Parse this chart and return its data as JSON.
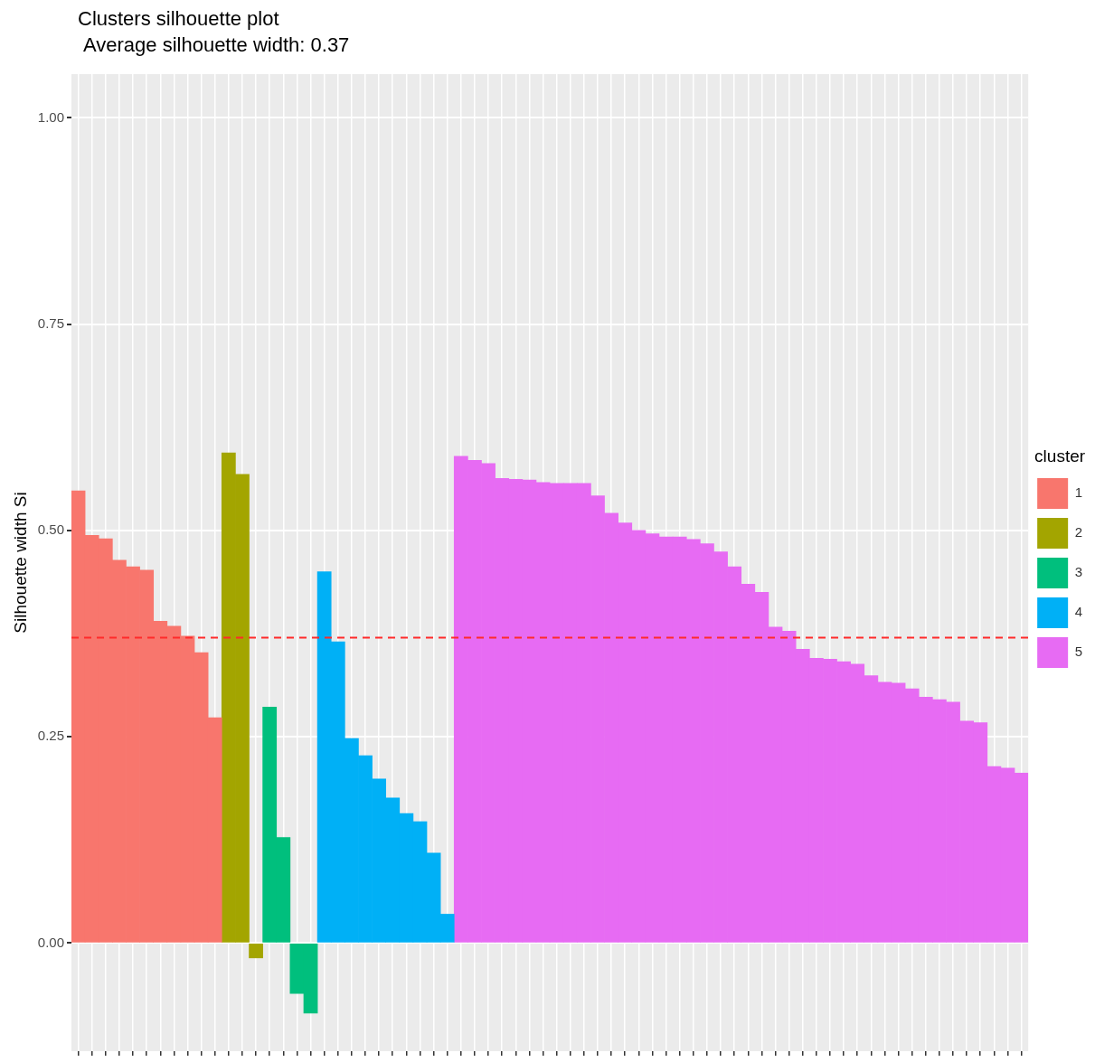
{
  "chart_data": {
    "type": "bar",
    "title": "Clusters silhouette plot",
    "subtitle": "Average silhouette width: 0.37",
    "ylabel": "Silhouette width Si",
    "legend_title": "cluster",
    "categories": [
      null,
      null,
      null,
      null,
      null,
      null,
      null,
      null,
      null,
      null,
      null,
      null,
      null,
      null,
      null,
      null,
      null,
      null,
      null,
      null,
      null,
      null,
      null,
      null,
      null,
      null,
      null,
      null,
      null,
      null,
      null,
      null,
      null,
      null,
      null,
      null,
      null,
      null,
      null,
      null,
      null,
      null,
      null,
      null,
      null,
      null,
      null,
      null,
      null,
      null,
      null,
      null,
      null,
      null,
      null,
      null,
      null,
      null,
      null,
      null,
      null,
      null,
      null,
      null,
      null,
      null,
      null,
      null,
      null,
      null
    ],
    "series": [
      {
        "name": "1",
        "color": "#f8766d",
        "values": [
          0.548,
          0.494,
          0.49,
          0.464,
          0.456,
          0.452,
          0.39,
          0.384,
          0.372,
          0.352,
          0.273,
          null,
          null,
          null,
          null,
          null,
          null,
          null,
          null,
          null,
          null,
          null,
          null,
          null,
          null,
          null,
          null,
          null,
          null,
          null,
          null,
          null,
          null,
          null,
          null,
          null,
          null,
          null,
          null,
          null,
          null,
          null,
          null,
          null,
          null,
          null,
          null,
          null,
          null,
          null,
          null,
          null,
          null,
          null,
          null,
          null,
          null,
          null,
          null,
          null,
          null,
          null,
          null,
          null,
          null,
          null,
          null,
          null,
          null,
          null
        ]
      },
      {
        "name": "2",
        "color": "#a3a500",
        "values": [
          null,
          null,
          null,
          null,
          null,
          null,
          null,
          null,
          null,
          null,
          null,
          0.594,
          0.568,
          -0.018,
          null,
          null,
          null,
          null,
          null,
          null,
          null,
          null,
          null,
          null,
          null,
          null,
          null,
          null,
          null,
          null,
          null,
          null,
          null,
          null,
          null,
          null,
          null,
          null,
          null,
          null,
          null,
          null,
          null,
          null,
          null,
          null,
          null,
          null,
          null,
          null,
          null,
          null,
          null,
          null,
          null,
          null,
          null,
          null,
          null,
          null,
          null,
          null,
          null,
          null,
          null,
          null,
          null,
          null,
          null,
          null
        ]
      },
      {
        "name": "3",
        "color": "#00bf7d",
        "values": [
          null,
          null,
          null,
          null,
          null,
          null,
          null,
          null,
          null,
          null,
          null,
          null,
          null,
          null,
          0.286,
          0.128,
          -0.061,
          -0.085,
          null,
          null,
          null,
          null,
          null,
          null,
          null,
          null,
          null,
          null,
          null,
          null,
          null,
          null,
          null,
          null,
          null,
          null,
          null,
          null,
          null,
          null,
          null,
          null,
          null,
          null,
          null,
          null,
          null,
          null,
          null,
          null,
          null,
          null,
          null,
          null,
          null,
          null,
          null,
          null,
          null,
          null,
          null,
          null,
          null,
          null,
          null,
          null,
          null,
          null,
          null,
          null
        ]
      },
      {
        "name": "4",
        "color": "#00b0f6",
        "values": [
          null,
          null,
          null,
          null,
          null,
          null,
          null,
          null,
          null,
          null,
          null,
          null,
          null,
          null,
          null,
          null,
          null,
          null,
          0.45,
          0.365,
          0.248,
          0.227,
          0.199,
          0.176,
          0.157,
          0.147,
          0.109,
          0.035,
          null,
          null,
          null,
          null,
          null,
          null,
          null,
          null,
          null,
          null,
          null,
          null,
          null,
          null,
          null,
          null,
          null,
          null,
          null,
          null,
          null,
          null,
          null,
          null,
          null,
          null,
          null,
          null,
          null,
          null,
          null,
          null,
          null,
          null,
          null,
          null,
          null,
          null,
          null,
          null,
          null,
          null
        ]
      },
      {
        "name": "5",
        "color": "#e76bf3",
        "values": [
          null,
          null,
          null,
          null,
          null,
          null,
          null,
          null,
          null,
          null,
          null,
          null,
          null,
          null,
          null,
          null,
          null,
          null,
          null,
          null,
          null,
          null,
          null,
          null,
          null,
          null,
          null,
          null,
          0.59,
          0.585,
          0.581,
          0.563,
          0.562,
          0.561,
          0.558,
          0.557,
          0.557,
          0.557,
          0.542,
          0.521,
          0.509,
          0.5,
          0.496,
          0.492,
          0.492,
          0.489,
          0.484,
          0.474,
          0.456,
          0.435,
          0.425,
          0.383,
          0.378,
          0.356,
          0.345,
          0.344,
          0.341,
          0.338,
          0.324,
          0.316,
          0.315,
          0.308,
          0.298,
          0.295,
          0.292,
          0.269,
          0.267,
          0.214,
          0.212,
          0.206
        ]
      }
    ],
    "ylim": [
      -0.131,
      1.053
    ],
    "yticks": [
      {
        "value": 0,
        "label": "0.00"
      },
      {
        "value": 0.25,
        "label": "0.25"
      },
      {
        "value": 0.5,
        "label": "0.50"
      },
      {
        "value": 0.75,
        "label": "0.75"
      },
      {
        "value": 1,
        "label": "1.00"
      }
    ],
    "ref_lines": [
      {
        "axis": "y",
        "value": 0.37,
        "label": null,
        "color": "#ff2a2a",
        "line_style": "dashed"
      }
    ],
    "grid": true,
    "legend": "right",
    "tick_labels": "y"
  }
}
